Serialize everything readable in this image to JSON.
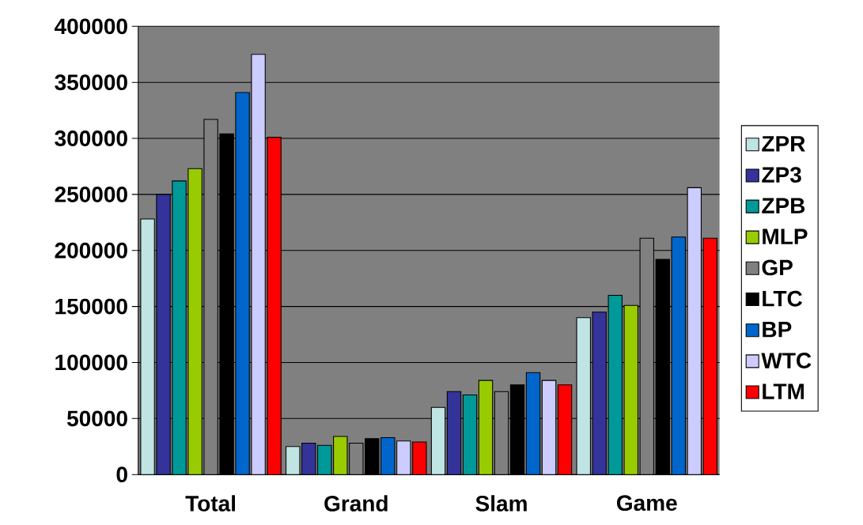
{
  "chart_data": {
    "type": "bar",
    "categories": [
      "Total",
      "Grand",
      "Slam",
      "Game"
    ],
    "series": [
      {
        "name": "ZPR",
        "color": "#c0e4e4",
        "values": [
          228000,
          25000,
          60000,
          140000
        ]
      },
      {
        "name": "ZP3",
        "color": "#333399",
        "values": [
          250000,
          28000,
          74000,
          145000
        ]
      },
      {
        "name": "ZPB",
        "color": "#009999",
        "values": [
          262000,
          26000,
          71000,
          160000
        ]
      },
      {
        "name": "MLP",
        "color": "#99cc00",
        "values": [
          273000,
          34000,
          84000,
          151000
        ]
      },
      {
        "name": "GP",
        "color": "#808080",
        "values": [
          317000,
          28000,
          74000,
          211000
        ]
      },
      {
        "name": "LTC",
        "color": "#000000",
        "values": [
          304000,
          32000,
          80000,
          192000
        ]
      },
      {
        "name": "BP",
        "color": "#0066cc",
        "values": [
          341000,
          33000,
          91000,
          212000
        ]
      },
      {
        "name": "WTC",
        "color": "#ccccff",
        "values": [
          375000,
          30000,
          84000,
          256000
        ]
      },
      {
        "name": "LTM",
        "color": "#ff0000",
        "values": [
          301000,
          29000,
          80000,
          211000
        ]
      }
    ],
    "ylim": [
      0,
      400000
    ],
    "yticks": [
      0,
      50000,
      100000,
      150000,
      200000,
      250000,
      300000,
      350000,
      400000
    ],
    "grid": "y",
    "legend": "right"
  }
}
